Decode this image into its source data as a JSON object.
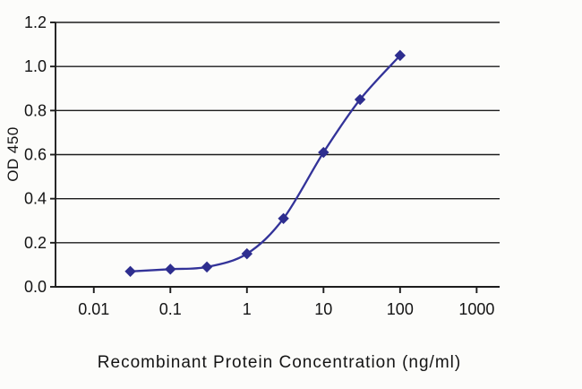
{
  "chart_data": {
    "type": "line",
    "title": "",
    "xlabel": "Recombinant Protein Concentration (ng/ml)",
    "ylabel": "OD 450",
    "xscale": "log",
    "x": [
      0.03,
      0.1,
      0.3,
      1,
      3,
      10,
      30,
      100
    ],
    "series": [
      {
        "name": "OD 450",
        "values": [
          0.07,
          0.08,
          0.09,
          0.15,
          0.31,
          0.61,
          0.85,
          1.05
        ]
      }
    ],
    "xticks": [
      0.01,
      0.1,
      1,
      10,
      100,
      1000
    ],
    "xtick_labels": [
      "0.01",
      "0.1",
      "1",
      "10",
      "100",
      "1000"
    ],
    "yticks": [
      0,
      0.2,
      0.4,
      0.6,
      0.8,
      1.0,
      1.2
    ],
    "ytick_labels": [
      "0.0",
      "0.2",
      "0.4",
      "0.6",
      "0.8",
      "1.0",
      "1.2"
    ],
    "xlim": [
      0.01,
      1000
    ],
    "ylim": [
      0,
      1.2
    ],
    "grid": "horizontal",
    "legend": "none",
    "marker": "diamond",
    "colors": {
      "line": "#333399",
      "marker": "#2e2e8f",
      "axis": "#1c1c1c",
      "background": "#fcfcfa"
    }
  }
}
